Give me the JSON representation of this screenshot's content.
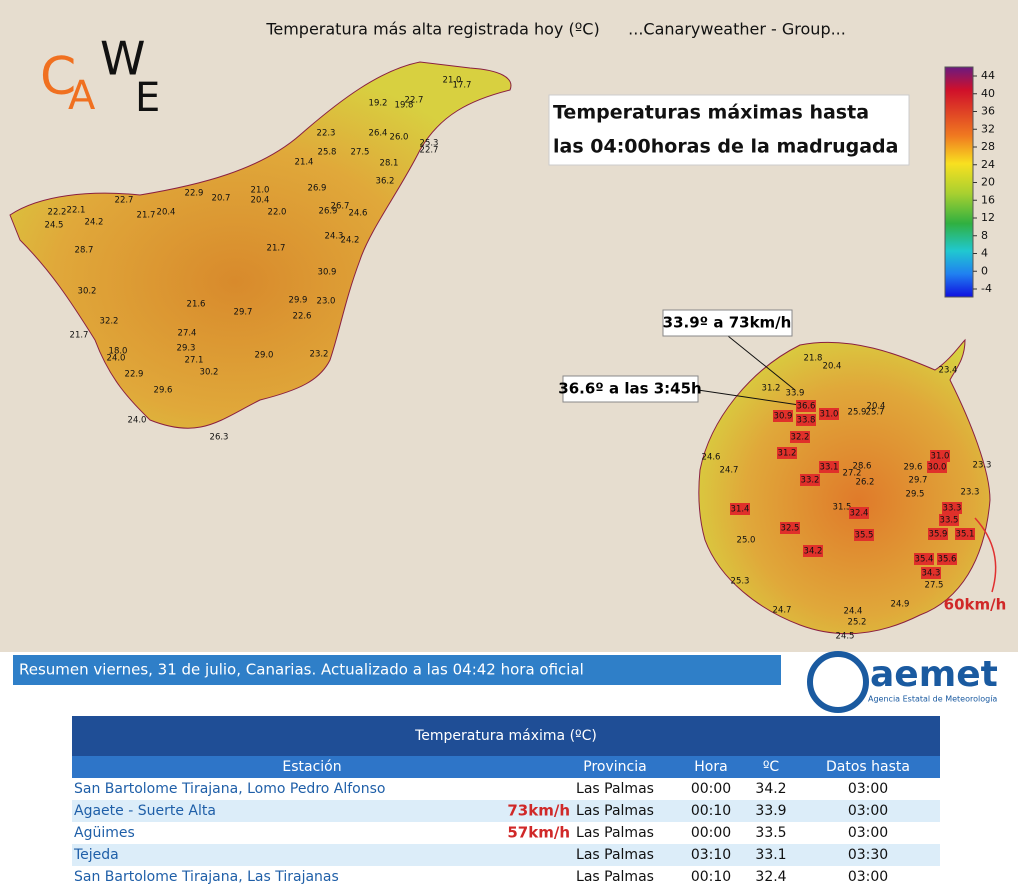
{
  "header": {
    "title": "Temperatura más alta registrada hoy (ºC)",
    "source": "...Canaryweather - Group...",
    "logo": [
      "C",
      "A",
      "W",
      "E"
    ]
  },
  "map": {
    "note": [
      "Temperaturas máximas hasta",
      "las 04:00horas de la madrugada"
    ],
    "callouts": [
      "33.9º a 73km/h",
      "36.6º a las 3:45h",
      "60km/h"
    ],
    "colorbar_ticks": [
      44,
      40,
      36,
      32,
      28,
      24,
      20,
      16,
      12,
      8,
      4,
      0,
      -4
    ],
    "tenerife_labels": [
      {
        "value": 21,
        "label": "21.0"
      },
      17.7,
      19.2,
      19.8,
      22.7,
      22.3,
      26.4,
      {
        "value": 26,
        "label": "26.0"
      },
      25.3,
      22.7,
      25.8,
      27.5,
      21.4,
      28.1,
      36.2,
      22.9,
      {
        "value": 21,
        "label": "21.0"
      },
      26.9,
      22.7,
      20.7,
      20.4,
      26.7,
      22.2,
      22.1,
      21.7,
      20.4,
      {
        "value": 22,
        "label": "22.0"
      },
      26.9,
      24.6,
      24.5,
      24.2,
      24.3,
      24.2,
      21.7,
      28.7,
      30.9,
      30.2,
      21.6,
      29.9,
      {
        "value": 23,
        "label": "23.0"
      },
      29.7,
      22.6,
      32.2,
      21.7,
      27.4,
      29.3,
      {
        "value": 18,
        "label": "18.0"
      },
      {
        "value": 24,
        "label": "24.0"
      },
      23.2,
      {
        "value": 29,
        "label": "29.0"
      },
      27.1,
      30.2,
      22.9,
      29.6,
      {
        "value": 24,
        "label": "24.0"
      },
      26.3
    ],
    "gran_canaria_labels": [
      21.8,
      20.4,
      23.4,
      31.2,
      33.9,
      36.6,
      30.9,
      33.8,
      {
        "value": 31,
        "label": "31.0"
      },
      25.9,
      20.4,
      25.7,
      32.2,
      31.2,
      {
        "value": 31,
        "label": "31.0"
      },
      24.6,
      28.6,
      29.6,
      {
        "value": 30,
        "label": "30.0"
      },
      33.1,
      23.3,
      24.7,
      27.2,
      33.2,
      26.2,
      29.7,
      29.5,
      23.3,
      33.3,
      31.5,
      31.4,
      32.4,
      33.5,
      35.9,
      35.1,
      32.5,
      35.5,
      {
        "value": 25,
        "label": "25.0"
      },
      34.2,
      35.4,
      35.6,
      34.3,
      27.5,
      25.3,
      24.9,
      24.7,
      24.4,
      25.2,
      24.5
    ]
  },
  "banner": "Resumen viernes, 31 de julio, Canarias. Actualizado a las 04:42 hora oficial",
  "aemet": {
    "name": "aemet",
    "subtitle": "Agencia Estatal de Meteorología"
  },
  "table": {
    "title": "Temperatura máxima (ºC)",
    "columns": [
      "Estación",
      "Provincia",
      "Hora",
      "ºC",
      "Datos hasta"
    ],
    "rows": [
      {
        "station": "San Bartolome Tirajana, Lomo Pedro Alfonso",
        "province": "Las Palmas",
        "time": "00:00",
        "temp": 34.2,
        "until": "03:00"
      },
      {
        "station": "Agaete - Suerte Alta",
        "wind": "73km/h",
        "province": "Las Palmas",
        "time": "00:10",
        "temp": 33.9,
        "until": "03:00"
      },
      {
        "station": "Agüimes",
        "wind": "57km/h",
        "province": "Las Palmas",
        "time": "00:00",
        "temp": 33.5,
        "until": "03:00"
      },
      {
        "station": "Tejeda",
        "province": "Las Palmas",
        "time": "03:10",
        "temp": 33.1,
        "until": "03:30"
      },
      {
        "station": "San Bartolome Tirajana, Las Tirajanas",
        "province": "Las Palmas",
        "time": "00:10",
        "temp": 32.4,
        "until": "03:00"
      }
    ]
  }
}
